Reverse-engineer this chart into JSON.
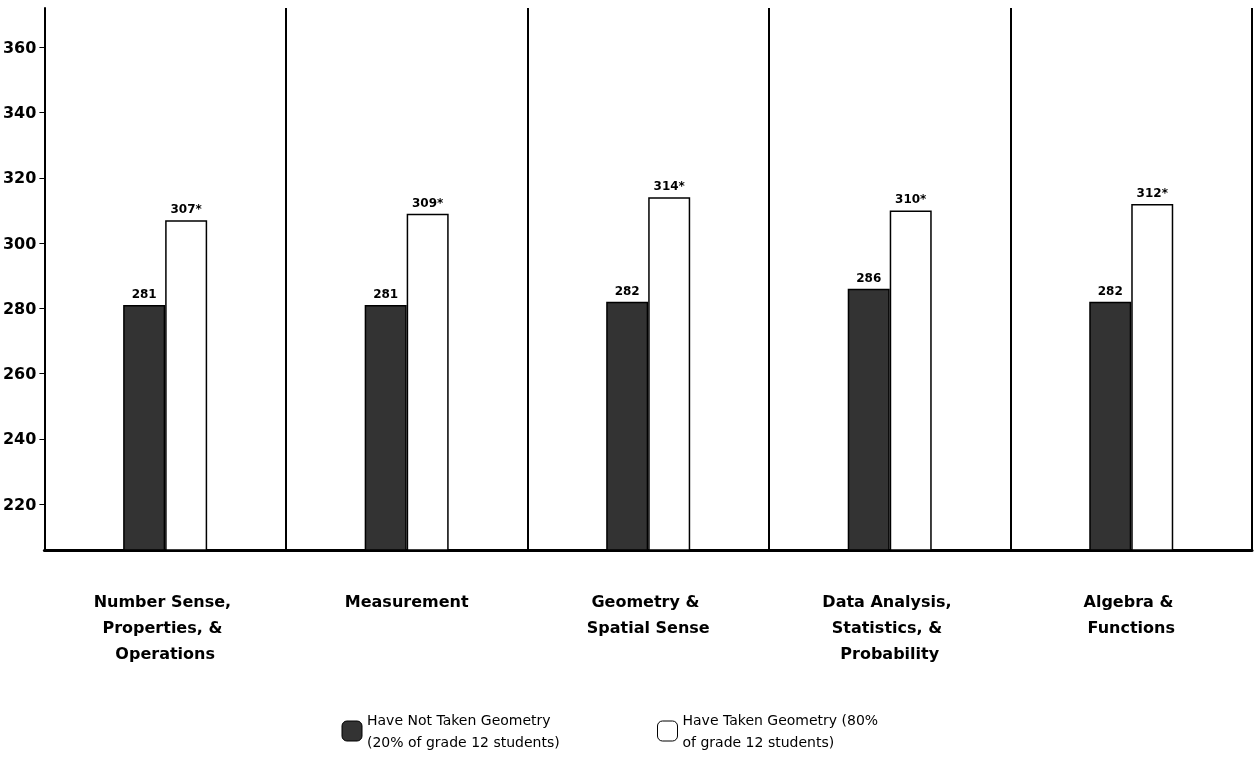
{
  "chart_data": {
    "type": "bar",
    "categories": [
      "Number Sense, Properties, & Operations",
      "Measurement",
      "Geometry & Spatial Sense",
      "Data Analysis, Statistics, & Probability",
      "Algebra & Functions"
    ],
    "series": [
      {
        "name": "Have Not Taken Geometry (20% of grade 12 students)",
        "color": "#333333",
        "values": [
          281,
          281,
          282,
          286,
          282
        ],
        "value_labels": [
          "281",
          "281",
          "282",
          "286",
          "282"
        ]
      },
      {
        "name": "Have Taken Geometry (80% of grade 12 students)",
        "color": "#ffffff",
        "values": [
          307,
          309,
          314,
          310,
          312
        ],
        "value_labels": [
          "307*",
          "309*",
          "314*",
          "310*",
          "312*"
        ]
      }
    ],
    "ylim": [
      206,
      372
    ],
    "yticks": [
      220,
      240,
      260,
      280,
      300,
      320,
      340,
      360
    ],
    "grid": "x",
    "legend": "bottom"
  }
}
